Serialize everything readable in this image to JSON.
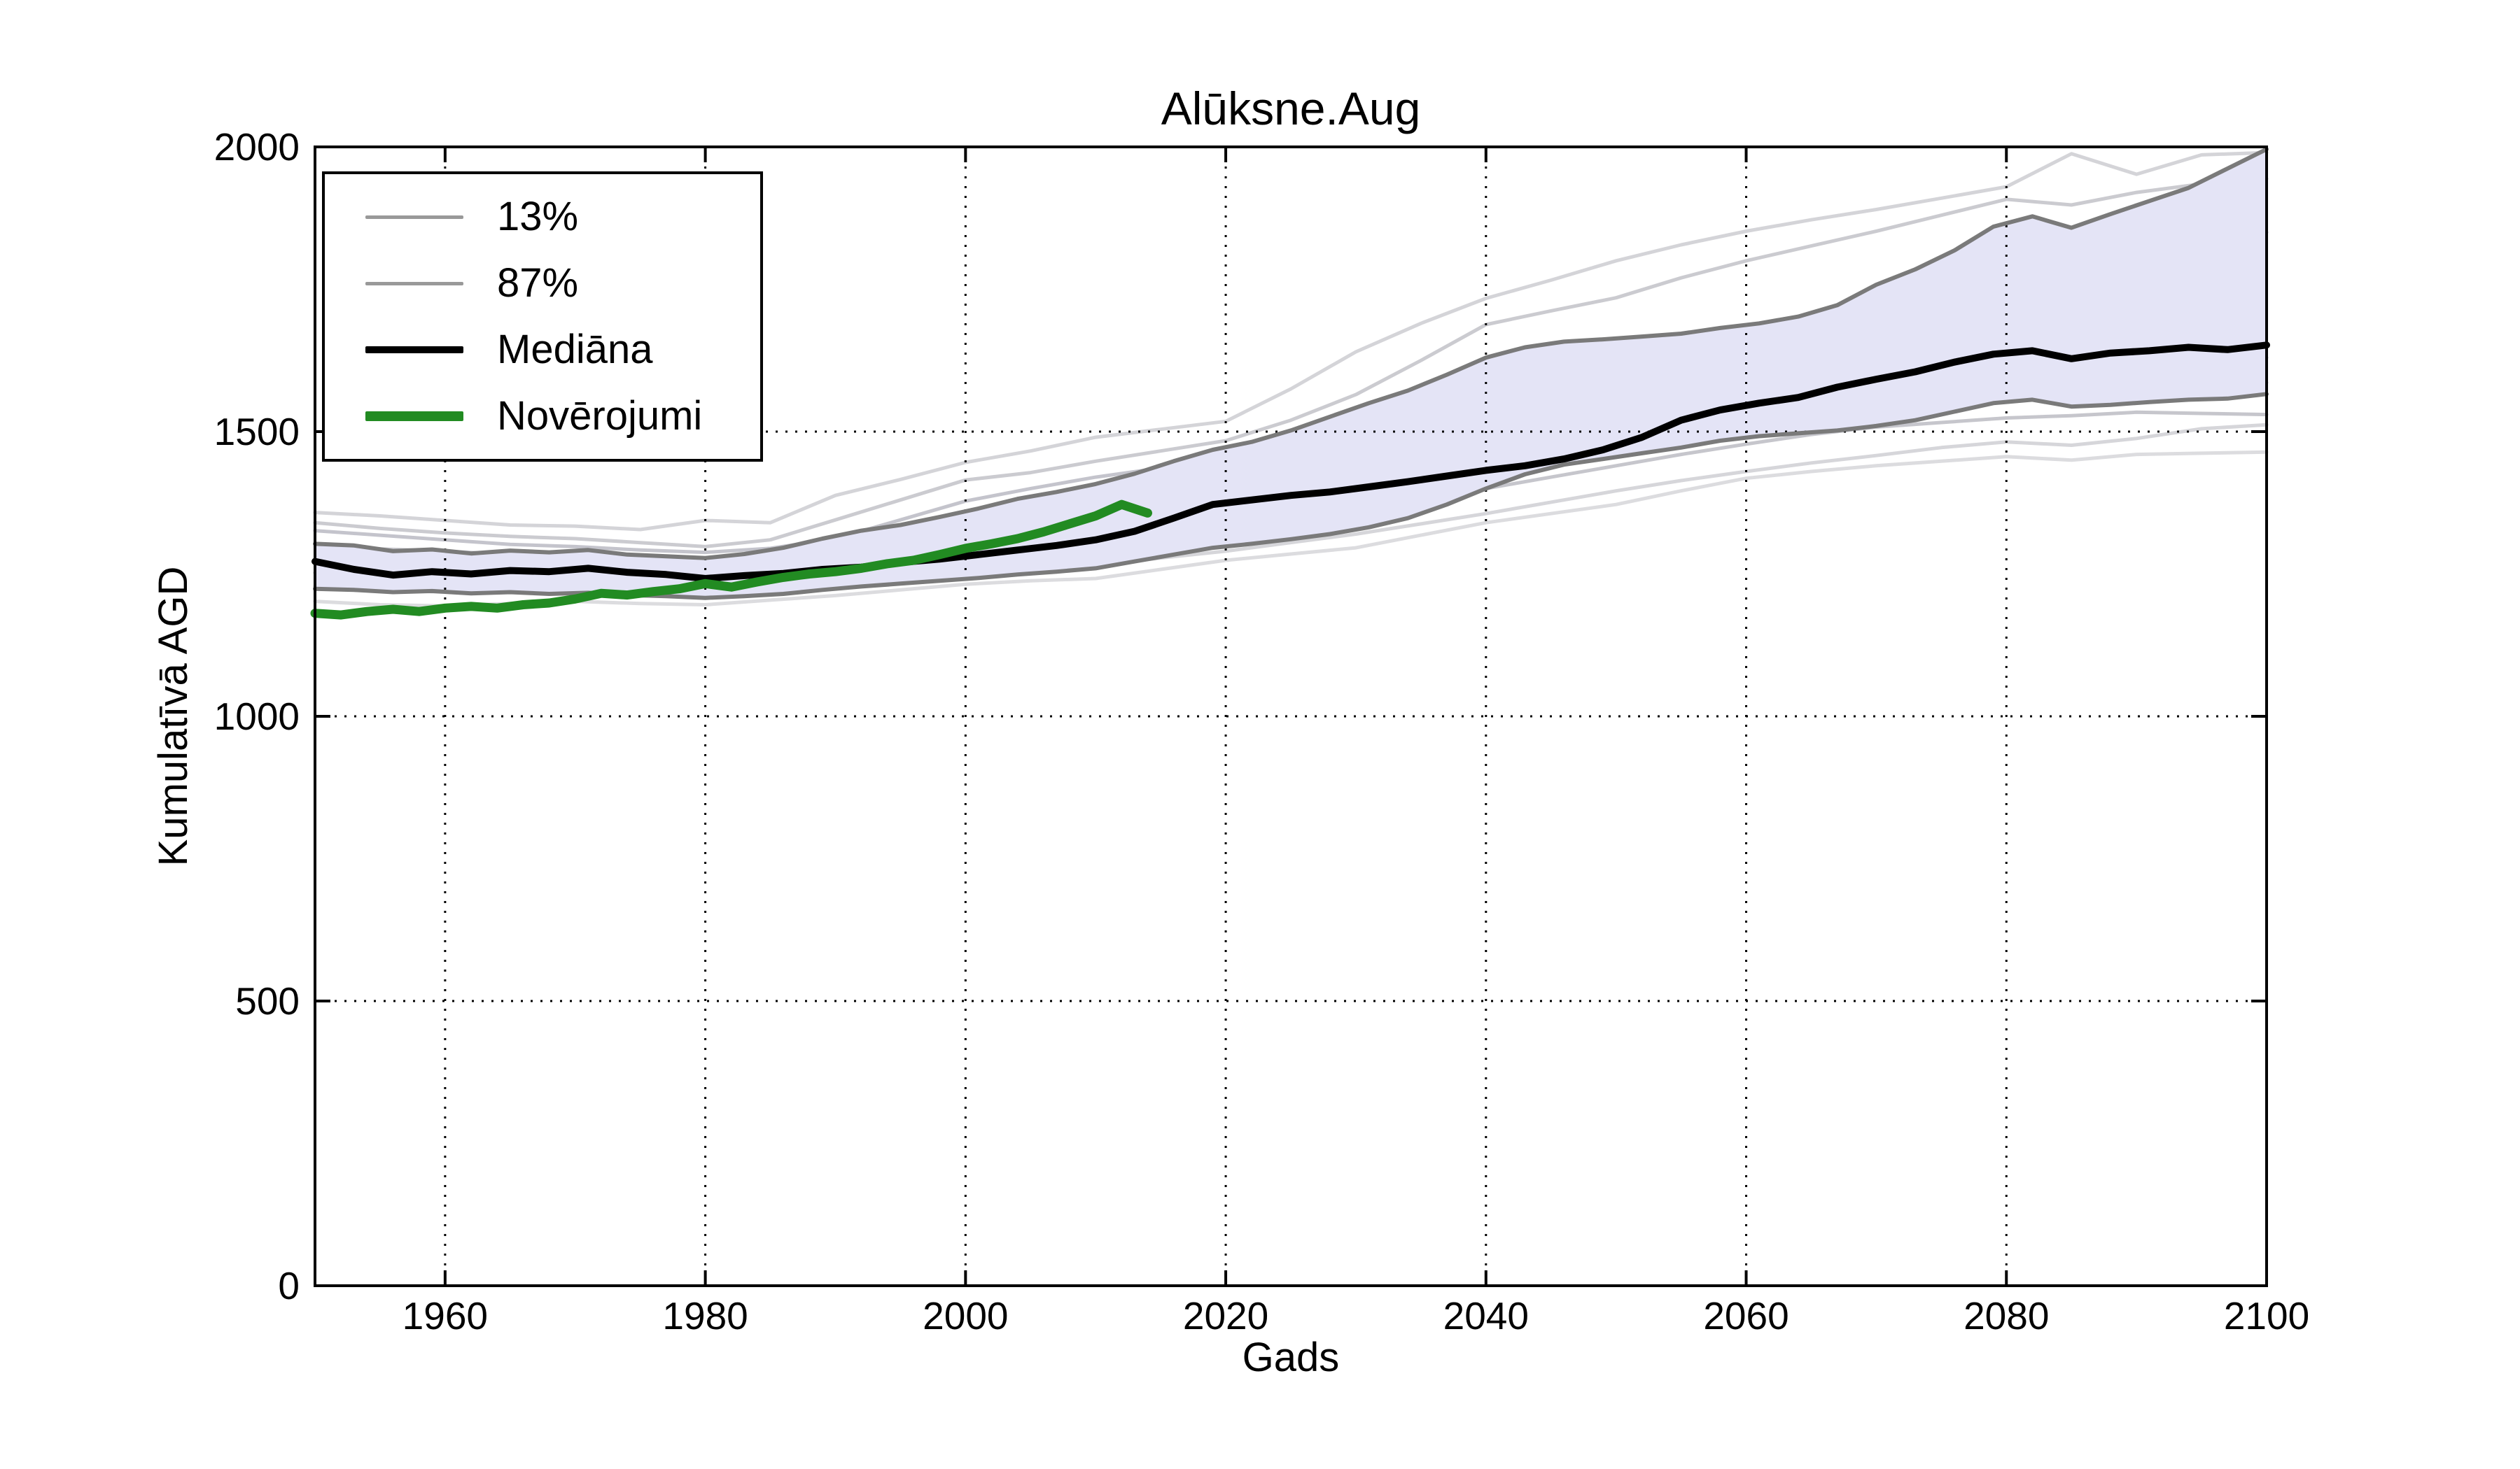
{
  "title": "Alūksne.Aug",
  "axes": {
    "xlabel": "Gads",
    "ylabel": "Kumulatīvā AGD",
    "xlim": [
      1950,
      2100
    ],
    "ylim": [
      0,
      2000
    ],
    "x_ticks": [
      1960,
      1980,
      2000,
      2020,
      2040,
      2060,
      2080,
      2100
    ],
    "y_ticks": [
      0,
      500,
      1000,
      1500,
      2000
    ],
    "grid_style": "dotted"
  },
  "legend": {
    "entries": [
      {
        "label": "13%",
        "color": "#999999",
        "thickness": 5
      },
      {
        "label": "87%",
        "color": "#999999",
        "thickness": 5
      },
      {
        "label": "Mediāna",
        "color": "#000000",
        "thickness": 10
      },
      {
        "label": "Novērojumi",
        "color": "#228B22",
        "thickness": 14
      }
    ]
  },
  "colors": {
    "band_fill": "#e4e4f6",
    "band_edge": "#7a7a7a",
    "median": "#000000",
    "observations": "#228B22",
    "grid": "#000000",
    "spine": "#000000"
  },
  "chart_data": {
    "type": "line",
    "title": "Alūksne.Aug",
    "xlabel": "Gads",
    "ylabel": "Kumulatīvā AGD",
    "xlim": [
      1950,
      2100
    ],
    "ylim": [
      0,
      2000
    ],
    "grid": "dotted",
    "legend_position": "upper-left",
    "band": {
      "upper_name": "87%",
      "lower_name": "13%",
      "fill": "#e4e4f6"
    },
    "series": [
      {
        "name": "Mediāna",
        "role": "median",
        "color": "#000000",
        "width": 10,
        "x0": 1950,
        "dx": 3,
        "values": [
          1272,
          1258,
          1248,
          1254,
          1250,
          1256,
          1254,
          1260,
          1253,
          1249,
          1242,
          1247,
          1251,
          1258,
          1262,
          1270,
          1276,
          1284,
          1292,
          1300,
          1310,
          1325,
          1348,
          1372,
          1380,
          1388,
          1394,
          1403,
          1412,
          1422,
          1432,
          1440,
          1452,
          1468,
          1490,
          1520,
          1538,
          1550,
          1560,
          1578,
          1592,
          1605,
          1622,
          1636,
          1642,
          1628,
          1638,
          1642,
          1648,
          1644,
          1652
        ]
      },
      {
        "name": "87%",
        "role": "band_upper",
        "color": "#7a7a7a",
        "width": 6,
        "x0": 1950,
        "dx": 3,
        "values": [
          1303,
          1300,
          1290,
          1293,
          1286,
          1291,
          1288,
          1292,
          1284,
          1281,
          1278,
          1285,
          1296,
          1312,
          1326,
          1336,
          1350,
          1365,
          1382,
          1394,
          1408,
          1426,
          1448,
          1468,
          1482,
          1502,
          1526,
          1550,
          1572,
          1600,
          1630,
          1648,
          1658,
          1662,
          1667,
          1672,
          1682,
          1690,
          1702,
          1722,
          1758,
          1785,
          1818,
          1860,
          1878,
          1858,
          1882,
          1905,
          1928,
          1962,
          1996
        ]
      },
      {
        "name": "13%",
        "role": "band_lower",
        "color": "#7a7a7a",
        "width": 6,
        "x0": 1950,
        "dx": 3,
        "values": [
          1224,
          1222,
          1218,
          1220,
          1216,
          1218,
          1215,
          1217,
          1213,
          1211,
          1208,
          1211,
          1215,
          1222,
          1228,
          1233,
          1238,
          1243,
          1249,
          1254,
          1260,
          1272,
          1284,
          1296,
          1303,
          1311,
          1320,
          1332,
          1348,
          1372,
          1400,
          1425,
          1442,
          1452,
          1462,
          1472,
          1484,
          1492,
          1497,
          1502,
          1510,
          1520,
          1535,
          1550,
          1556,
          1544,
          1547,
          1552,
          1556,
          1558,
          1566
        ]
      },
      {
        "name": "Novērojumi",
        "role": "observations",
        "color": "#228B22",
        "width": 13,
        "x0": 1950,
        "dx": 2,
        "values": [
          1181,
          1178,
          1184,
          1188,
          1184,
          1190,
          1193,
          1190,
          1196,
          1199,
          1206,
          1216,
          1213,
          1219,
          1224,
          1233,
          1227,
          1236,
          1244,
          1250,
          1254,
          1260,
          1268,
          1274,
          1284,
          1295,
          1303,
          1312,
          1324,
          1338,
          1352,
          1372,
          1357
        ]
      },
      {
        "name": "ensemble-1",
        "role": "ensemble",
        "color": "#d4d4d8",
        "width": 5,
        "x0": 1950,
        "dx": 5,
        "values": [
          1358,
          1352,
          1344,
          1336,
          1334,
          1328,
          1344,
          1340,
          1388,
          1416,
          1446,
          1466,
          1490,
          1504,
          1518,
          1575,
          1640,
          1690,
          1734,
          1766,
          1800,
          1828,
          1852,
          1872,
          1890,
          1910,
          1930,
          1988,
          1952,
          1986,
          1990
        ]
      },
      {
        "name": "ensemble-2",
        "role": "ensemble",
        "color": "#cbcbd0",
        "width": 5,
        "x0": 1950,
        "dx": 5,
        "values": [
          1340,
          1330,
          1322,
          1316,
          1312,
          1305,
          1298,
          1310,
          1345,
          1380,
          1415,
          1428,
          1448,
          1466,
          1484,
          1520,
          1565,
          1625,
          1688,
          1712,
          1735,
          1770,
          1800,
          1826,
          1852,
          1880,
          1908,
          1898,
          1920,
          1935,
          1944
        ]
      },
      {
        "name": "ensemble-3",
        "role": "ensemble",
        "color": "#c4c4cc",
        "width": 5,
        "x0": 1950,
        "dx": 5,
        "values": [
          1326,
          1318,
          1310,
          1302,
          1298,
          1292,
          1288,
          1295,
          1312,
          1345,
          1378,
          1400,
          1420,
          1436,
          1452,
          1478,
          1502,
          1522,
          1542,
          1572,
          1602,
          1622,
          1642,
          1672,
          1702,
          1730,
          1758,
          1788,
          1818,
          1838,
          1850
        ]
      },
      {
        "name": "ensemble-4",
        "role": "ensemble",
        "color": "#c9c9cf",
        "width": 5,
        "x0": 1950,
        "dx": 5,
        "values": [
          1302,
          1294,
          1290,
          1284,
          1286,
          1276,
          1270,
          1278,
          1292,
          1310,
          1330,
          1346,
          1362,
          1382,
          1400,
          1420,
          1440,
          1456,
          1470,
          1495,
          1520,
          1540,
          1560,
          1580,
          1600,
          1625,
          1648,
          1638,
          1642,
          1636,
          1630
        ]
      },
      {
        "name": "ensemble-5",
        "role": "ensemble",
        "color": "#d0d0d5",
        "width": 5,
        "x0": 1950,
        "dx": 5,
        "values": [
          1272,
          1266,
          1262,
          1258,
          1260,
          1254,
          1250,
          1256,
          1266,
          1282,
          1298,
          1310,
          1320,
          1336,
          1350,
          1370,
          1390,
          1410,
          1430,
          1450,
          1470,
          1495,
          1518,
          1530,
          1540,
          1555,
          1570,
          1578,
          1580,
          1584,
          1586
        ]
      },
      {
        "name": "ensemble-6",
        "role": "ensemble",
        "color": "#c6c6cc",
        "width": 5,
        "x0": 1950,
        "dx": 5,
        "values": [
          1252,
          1244,
          1240,
          1244,
          1246,
          1240,
          1234,
          1240,
          1246,
          1258,
          1270,
          1280,
          1290,
          1305,
          1320,
          1338,
          1355,
          1378,
          1400,
          1420,
          1440,
          1460,
          1478,
          1495,
          1508,
          1516,
          1524,
          1528,
          1534,
          1532,
          1530
        ]
      },
      {
        "name": "ensemble-7",
        "role": "ensemble",
        "color": "#d6d6da",
        "width": 5,
        "x0": 1950,
        "dx": 5,
        "values": [
          1228,
          1222,
          1218,
          1222,
          1224,
          1218,
          1214,
          1220,
          1226,
          1238,
          1250,
          1258,
          1266,
          1278,
          1290,
          1305,
          1320,
          1338,
          1356,
          1376,
          1396,
          1414,
          1430,
          1445,
          1458,
          1472,
          1482,
          1476,
          1488,
          1505,
          1512
        ]
      },
      {
        "name": "ensemble-8",
        "role": "ensemble",
        "color": "#dcdcdf",
        "width": 5,
        "x0": 1950,
        "dx": 5,
        "values": [
          1202,
          1196,
          1194,
          1198,
          1202,
          1198,
          1196,
          1204,
          1212,
          1222,
          1232,
          1238,
          1242,
          1258,
          1274,
          1285,
          1296,
          1318,
          1340,
          1356,
          1372,
          1396,
          1418,
          1430,
          1440,
          1448,
          1456,
          1450,
          1460,
          1462,
          1464
        ]
      }
    ]
  }
}
